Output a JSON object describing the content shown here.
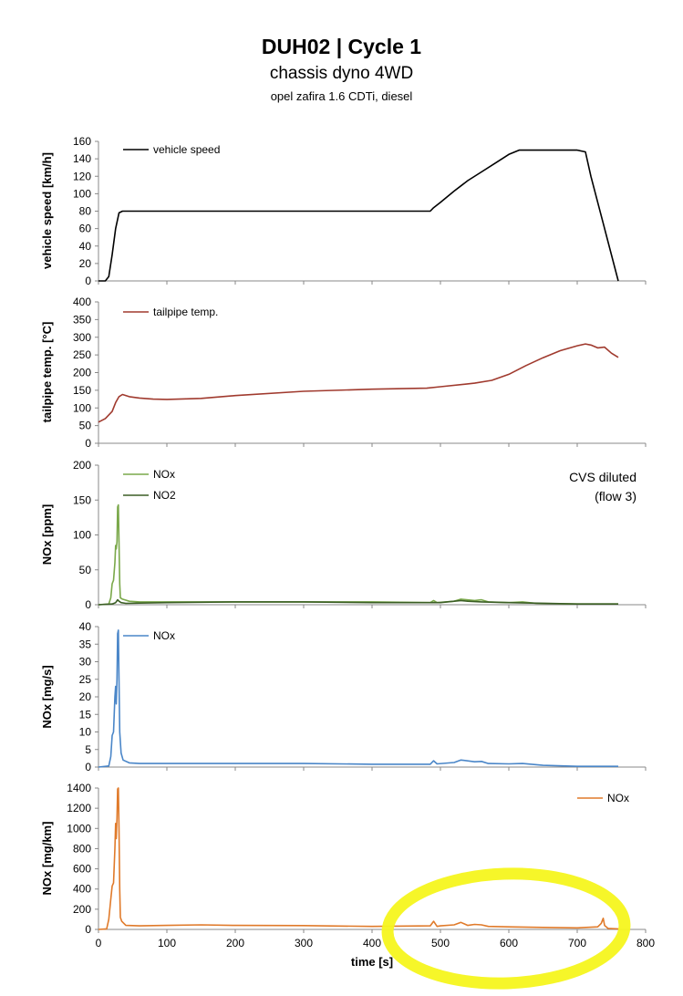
{
  "title": "DUH02 | Cycle 1",
  "subtitle": "chassis dyno 4WD",
  "vehicle": "opel zafira 1.6 CDTi, diesel",
  "colors": {
    "speed": "#000000",
    "temp": "#a03a2e",
    "nox_ppm": "#7aa84a",
    "no2_ppm": "#3b5e25",
    "nox_mgs": "#4a86c8",
    "nox_mgkm": "#e07a2a",
    "highlight": "#f5f51e"
  },
  "chart_data": [
    {
      "type": "line",
      "id": "speed",
      "ylabel": "vehicle speed [km/h]",
      "xlabel": "",
      "xlim": [
        0,
        800
      ],
      "ylim": [
        0,
        160
      ],
      "yticks": [
        "0",
        "20",
        "40",
        "60",
        "80",
        "100",
        "120",
        "140",
        "160"
      ],
      "series": [
        {
          "name": "vehicle speed",
          "color": "#000000",
          "x": [
            0,
            10,
            15,
            20,
            25,
            30,
            35,
            60,
            100,
            200,
            300,
            400,
            460,
            485,
            490,
            500,
            520,
            540,
            560,
            580,
            600,
            615,
            625,
            640,
            700,
            712,
            720,
            740,
            760
          ],
          "y": [
            0,
            0,
            5,
            30,
            60,
            78,
            80,
            80,
            80,
            80,
            80,
            80,
            80,
            80,
            84,
            90,
            103,
            115,
            125,
            135,
            145,
            150,
            150,
            150,
            150,
            148,
            120,
            60,
            0
          ]
        }
      ]
    },
    {
      "type": "line",
      "id": "temp",
      "ylabel": "tailpipe temp. [°C]",
      "xlabel": "",
      "xlim": [
        0,
        800
      ],
      "ylim": [
        0,
        400
      ],
      "yticks": [
        "0",
        "50",
        "100",
        "150",
        "200",
        "250",
        "300",
        "350",
        "400"
      ],
      "series": [
        {
          "name": "tailpipe temp.",
          "color": "#a03a2e",
          "x": [
            0,
            10,
            20,
            25,
            30,
            35,
            45,
            60,
            80,
            100,
            150,
            200,
            300,
            400,
            480,
            500,
            550,
            575,
            600,
            625,
            650,
            675,
            700,
            712,
            720,
            730,
            740,
            750,
            760
          ],
          "y": [
            60,
            70,
            90,
            115,
            132,
            138,
            132,
            128,
            125,
            124,
            127,
            135,
            147,
            153,
            156,
            160,
            170,
            178,
            195,
            220,
            242,
            262,
            276,
            281,
            278,
            270,
            272,
            255,
            243
          ]
        }
      ]
    },
    {
      "type": "line",
      "id": "ppm",
      "ylabel": "NOx [ppm]",
      "xlabel": "",
      "xlim": [
        0,
        800
      ],
      "ylim": [
        0,
        200
      ],
      "yticks": [
        "0",
        "50",
        "100",
        "150",
        "200"
      ],
      "annotation": [
        "CVS diluted",
        "(flow 3)"
      ],
      "series": [
        {
          "name": "NOx",
          "color": "#7aa84a",
          "x": [
            0,
            15,
            18,
            20,
            22,
            24,
            25,
            26,
            27,
            28,
            29,
            30,
            31,
            32,
            35,
            45,
            60,
            100,
            200,
            300,
            400,
            485,
            490,
            495,
            520,
            530,
            550,
            560,
            570,
            600,
            620,
            640,
            700,
            760
          ],
          "y": [
            0,
            1,
            10,
            30,
            35,
            60,
            85,
            80,
            90,
            140,
            143,
            90,
            30,
            10,
            8,
            5,
            4,
            4,
            4,
            4,
            4,
            3,
            6,
            3,
            5,
            8,
            6,
            7,
            4,
            3,
            4,
            2,
            1,
            1
          ]
        },
        {
          "name": "NO2",
          "color": "#3b5e25",
          "x": [
            0,
            20,
            25,
            28,
            30,
            33,
            40,
            100,
            200,
            300,
            400,
            500,
            530,
            540,
            560,
            600,
            700,
            760
          ],
          "y": [
            0,
            1,
            3,
            7,
            5,
            3,
            2,
            3,
            4,
            4,
            3,
            3,
            6,
            5,
            4,
            3,
            1,
            1
          ]
        }
      ]
    },
    {
      "type": "line",
      "id": "mgs",
      "ylabel": "NOx  [mg/s]",
      "xlabel": "",
      "xlim": [
        0,
        800
      ],
      "ylim": [
        0,
        40
      ],
      "yticks": [
        "0",
        "5",
        "10",
        "15",
        "20",
        "25",
        "30",
        "35",
        "40"
      ],
      "series": [
        {
          "name": "NOx",
          "color": "#4a86c8",
          "x": [
            0,
            15,
            18,
            20,
            22,
            24,
            25,
            26,
            27,
            28,
            29,
            30,
            31,
            33,
            36,
            45,
            60,
            100,
            200,
            300,
            400,
            485,
            490,
            495,
            520,
            530,
            550,
            560,
            570,
            600,
            620,
            650,
            700,
            760
          ],
          "y": [
            0,
            0.3,
            3,
            9,
            10,
            20,
            23,
            18,
            25,
            38,
            39,
            25,
            10,
            4,
            2,
            1.2,
            1,
            1,
            1,
            1,
            0.8,
            0.8,
            1.8,
            0.9,
            1.3,
            2,
            1.5,
            1.6,
            1,
            0.9,
            1,
            0.5,
            0.2,
            0.2
          ]
        }
      ]
    },
    {
      "type": "line",
      "id": "mgkm",
      "ylabel": "NOx [mg/km]",
      "xlabel": "time [s]",
      "xlim": [
        0,
        800
      ],
      "ylim": [
        0,
        1400
      ],
      "xticks": [
        "0",
        "100",
        "200",
        "300",
        "400",
        "500",
        "600",
        "700",
        "800"
      ],
      "yticks": [
        "0",
        "200",
        "400",
        "600",
        "800",
        "1000",
        "1200",
        "1400"
      ],
      "series": [
        {
          "name": "NOx",
          "color": "#e07a2a",
          "x": [
            0,
            12,
            15,
            18,
            20,
            22,
            24,
            25,
            26,
            27,
            28,
            29,
            30,
            31,
            32,
            34,
            40,
            60,
            100,
            150,
            200,
            300,
            400,
            485,
            490,
            495,
            500,
            520,
            530,
            540,
            550,
            560,
            570,
            600,
            650,
            700,
            730,
            735,
            738,
            740,
            745,
            760
          ],
          "y": [
            0,
            5,
            100,
            300,
            430,
            460,
            800,
            1050,
            900,
            1100,
            1390,
            1400,
            1000,
            400,
            120,
            80,
            40,
            35,
            40,
            45,
            40,
            38,
            30,
            35,
            80,
            30,
            35,
            45,
            70,
            40,
            50,
            45,
            30,
            25,
            20,
            15,
            25,
            60,
            110,
            40,
            10,
            5
          ]
        }
      ]
    }
  ]
}
